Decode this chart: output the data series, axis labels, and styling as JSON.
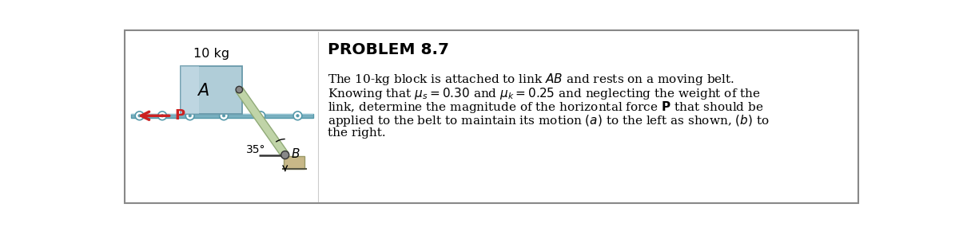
{
  "fig_width": 12.0,
  "fig_height": 2.9,
  "dpi": 100,
  "bg_color": "#ffffff",
  "border_color": "#888888",
  "block_color_top": "#c8dde8",
  "block_color": "#b0cdd8",
  "block_edge_color": "#6899aa",
  "belt_color": "#7ab0c0",
  "belt_top_color": "#9ecad8",
  "link_color": "#c0d4a8",
  "link_edge_color": "#90aa78",
  "roller_face": "#ffffff",
  "roller_edge": "#5599aa",
  "pin_face": "#888888",
  "pin_edge": "#333333",
  "anchor_color": "#c8b888",
  "anchor_edge": "#999966",
  "p_arrow_color": "#cc2222",
  "p_label_color": "#cc2222",
  "mass_label": "10 kg",
  "block_label": "A",
  "link_label": "B",
  "angle_label": "35°",
  "p_label": "P",
  "problem_title": "PROBLEM 8.7"
}
